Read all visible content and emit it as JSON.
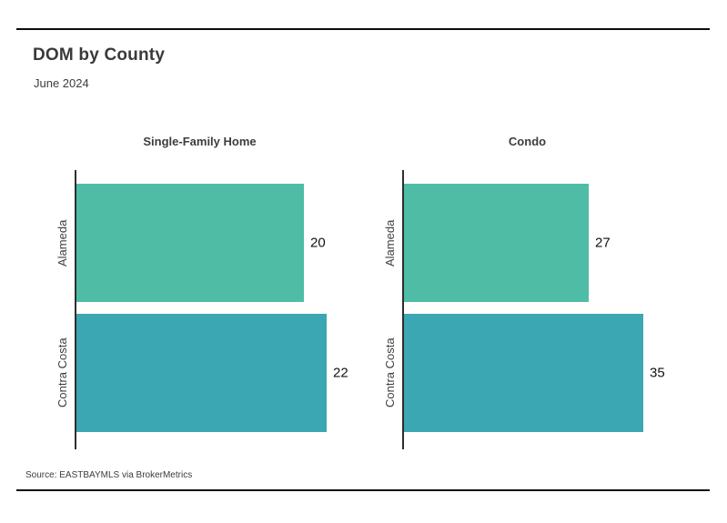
{
  "chart_data": {
    "type": "bar",
    "orientation": "horizontal",
    "title": "DOM by County",
    "subtitle": "June 2024",
    "source_note": "Source: EASTBAYMLS via BrokerMetrics",
    "categories": [
      "Alameda",
      "Contra Costa"
    ],
    "series": [
      {
        "name": "Single-Family Home",
        "values": [
          20,
          22
        ],
        "xlim": [
          0,
          24
        ]
      },
      {
        "name": "Condo",
        "values": [
          27,
          35
        ],
        "xlim": [
          0,
          40
        ]
      }
    ],
    "bar_colors": [
      "#4fbca5",
      "#3aa7b2"
    ],
    "axis_line_color": "#2e2e2e",
    "value_labels_shown": true,
    "grid": false,
    "legend": false
  }
}
